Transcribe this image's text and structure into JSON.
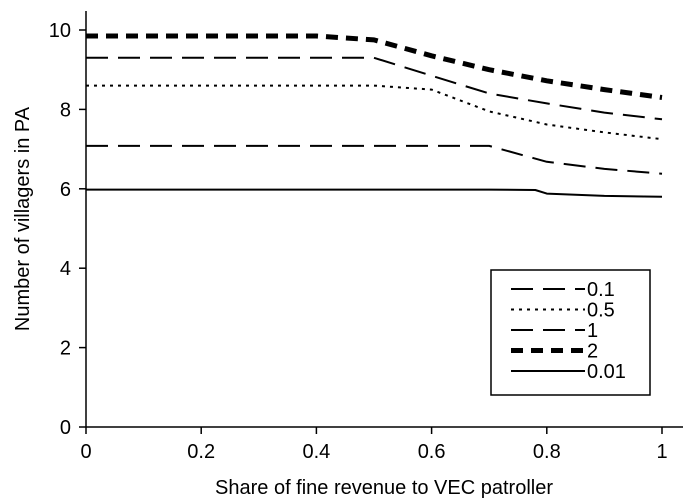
{
  "chart_data": {
    "type": "line",
    "xlabel": "Share of fine revenue to VEC patroller",
    "ylabel": "Number of villagers in PA",
    "xlim": [
      0,
      1
    ],
    "ylim": [
      0,
      10
    ],
    "x_ticks": [
      "0",
      "0.2",
      "0.4",
      "0.6",
      "0.8",
      "1"
    ],
    "y_ticks": [
      "0",
      "2",
      "4",
      "6",
      "8",
      "10"
    ],
    "x_tick_values": [
      0,
      0.2,
      0.4,
      0.6,
      0.8,
      1
    ],
    "y_tick_values": [
      0,
      2,
      4,
      6,
      8,
      10
    ],
    "grid": false,
    "legend_position": "bottom-right",
    "series": [
      {
        "name": "0.1",
        "style": "long-dash",
        "x": [
          0,
          0.1,
          0.2,
          0.3,
          0.4,
          0.5,
          0.6,
          0.7,
          0.8,
          0.9,
          1.0
        ],
        "y": [
          7.08,
          7.08,
          7.08,
          7.08,
          7.08,
          7.08,
          7.08,
          7.08,
          6.68,
          6.5,
          6.38
        ]
      },
      {
        "name": "0.5",
        "style": "dotted",
        "x": [
          0,
          0.1,
          0.2,
          0.3,
          0.4,
          0.5,
          0.6,
          0.7,
          0.8,
          0.9,
          1.0
        ],
        "y": [
          8.6,
          8.6,
          8.6,
          8.6,
          8.6,
          8.6,
          8.5,
          7.95,
          7.62,
          7.42,
          7.25
        ]
      },
      {
        "name": "1",
        "style": "long-dash",
        "x": [
          0,
          0.1,
          0.2,
          0.3,
          0.4,
          0.5,
          0.6,
          0.7,
          0.8,
          0.9,
          1.0
        ],
        "y": [
          9.3,
          9.3,
          9.3,
          9.3,
          9.3,
          9.3,
          8.85,
          8.4,
          8.15,
          7.92,
          7.75
        ]
      },
      {
        "name": "2",
        "style": "thick-dash",
        "x": [
          0,
          0.1,
          0.2,
          0.3,
          0.4,
          0.5,
          0.6,
          0.7,
          0.8,
          0.9,
          1.0
        ],
        "y": [
          9.85,
          9.85,
          9.85,
          9.85,
          9.85,
          9.75,
          9.35,
          9.0,
          8.72,
          8.5,
          8.3
        ]
      },
      {
        "name": "0.01",
        "style": "solid",
        "x": [
          0,
          0.1,
          0.2,
          0.3,
          0.4,
          0.5,
          0.6,
          0.7,
          0.78,
          0.8,
          0.9,
          1.0
        ],
        "y": [
          5.98,
          5.98,
          5.98,
          5.98,
          5.98,
          5.98,
          5.98,
          5.98,
          5.97,
          5.88,
          5.82,
          5.8
        ]
      }
    ]
  }
}
